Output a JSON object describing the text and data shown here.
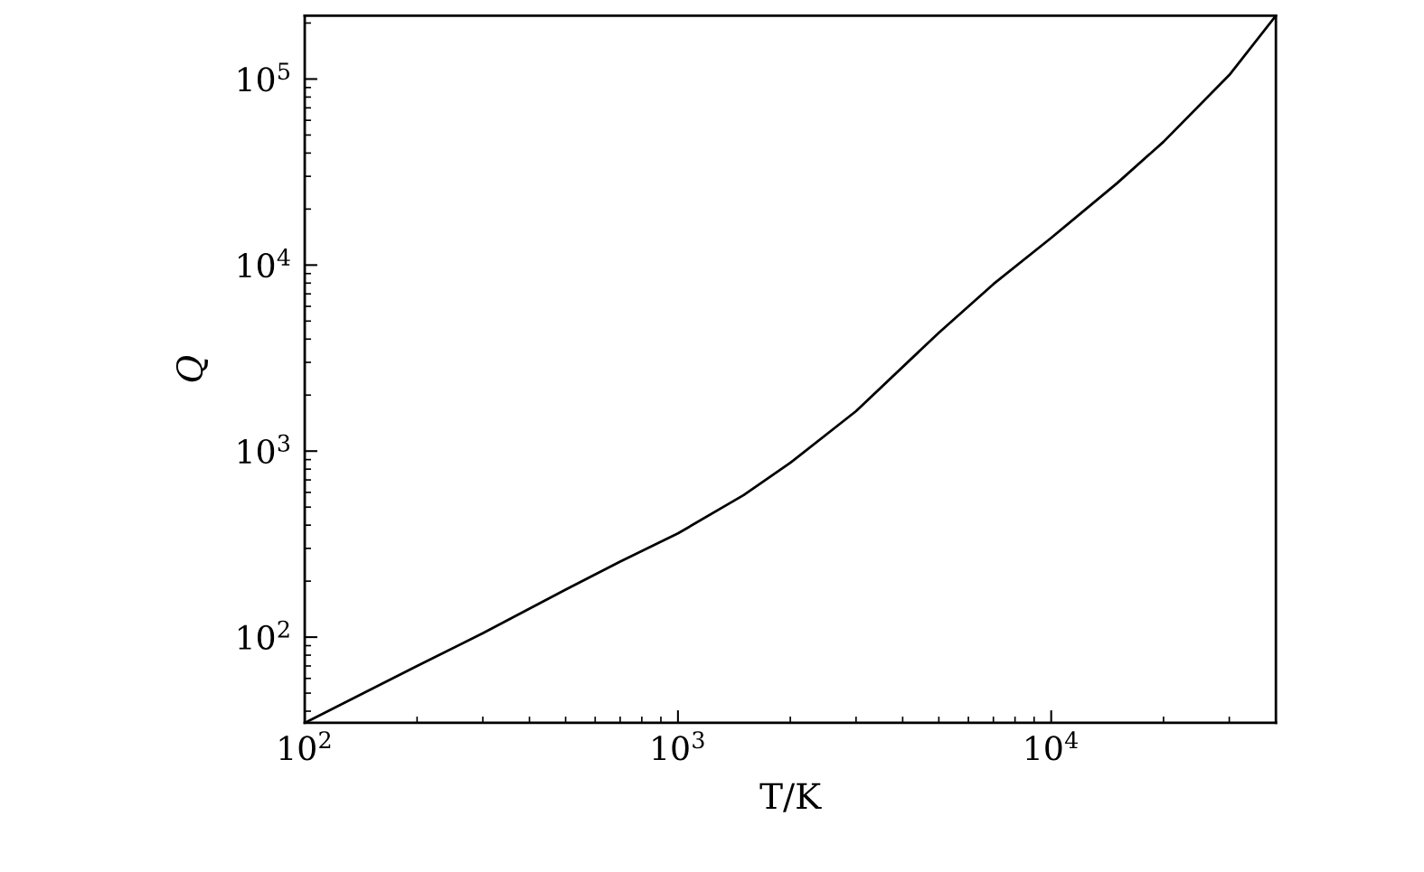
{
  "chart_data": {
    "type": "line",
    "xlabel": "T/K",
    "ylabel": "Q",
    "log": "xy",
    "x": [
      100,
      200,
      300,
      500,
      700,
      1000,
      1500,
      2000,
      3000,
      5000,
      7000,
      10000,
      15000,
      20000,
      30000,
      40000
    ],
    "series": [
      {
        "color": "#000000",
        "values": [
          34.6,
          70,
          105,
          180,
          255,
          361,
          580,
          865,
          1640,
          4330,
          7900,
          14000,
          27500,
          46000,
          105000,
          219000
        ]
      }
    ],
    "xlim": [
      100,
      40000
    ],
    "ylim": [
      34.6,
      219000
    ],
    "xticks": [
      {
        "value": 100,
        "label": "10$^{2}$"
      },
      {
        "value": 1000,
        "label": "10$^{3}$"
      },
      {
        "value": 10000,
        "label": "10$^{4}$"
      }
    ],
    "yticks": [
      {
        "value": 100,
        "label": "10$^{2}$"
      },
      {
        "value": 1000,
        "label": "10$^{3}$"
      },
      {
        "value": 10000,
        "label": "10$^{4}$"
      },
      {
        "value": 100000,
        "label": "10$^{5}$"
      }
    ],
    "grid": false,
    "marker": "none",
    "line_style": "solid"
  }
}
